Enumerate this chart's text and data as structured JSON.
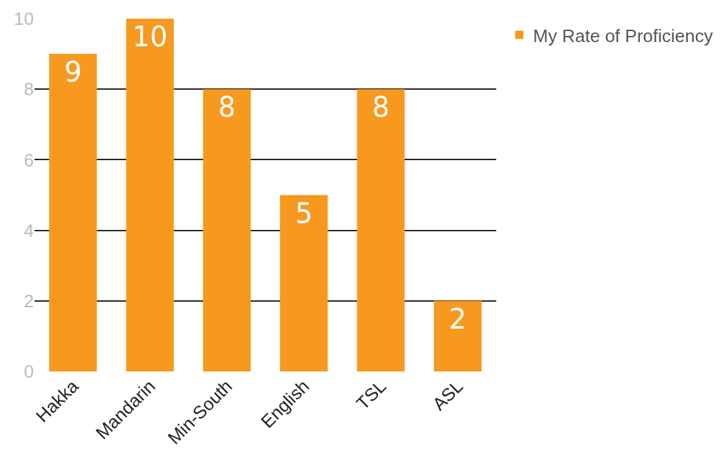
{
  "chart_data": {
    "type": "bar",
    "categories": [
      "Hakka",
      "Mandarin",
      "Min-South",
      "English",
      "TSL",
      "ASL"
    ],
    "series": [
      {
        "name": "My Rate of Proficiency",
        "color": "#f7991f",
        "values": [
          9,
          10,
          8,
          5,
          8,
          2
        ]
      }
    ],
    "ylim": [
      0,
      10
    ],
    "yticks": [
      0,
      2,
      4,
      6,
      8,
      10
    ],
    "grid": "y",
    "legend": "top right",
    "data_labels": true
  }
}
